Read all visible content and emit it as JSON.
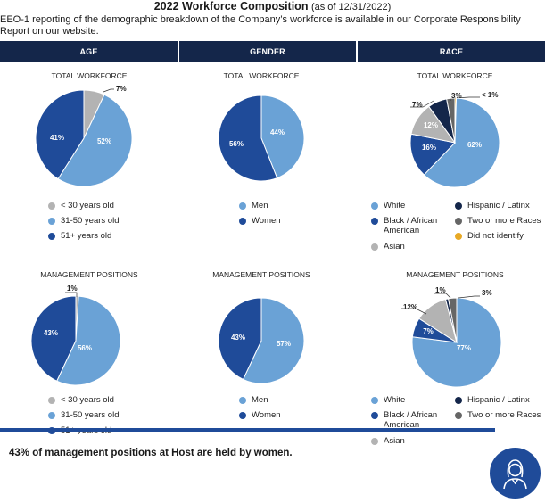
{
  "title": {
    "main": "2022 Workforce Composition",
    "sub": "(as of 12/31/2022)"
  },
  "intro": "EEO-1 reporting of the demographic breakdown of the Company’s workforce is available in our Corporate Responsibility Report on our website.",
  "headers": {
    "age": "AGE",
    "gender": "GENDER",
    "race": "RACE"
  },
  "colors": {
    "header_bg": "#14264a",
    "light_blue": "#6aa2d6",
    "mid_blue": "#1f4b99",
    "dark_navy": "#14264a",
    "gray": "#b3b3b3",
    "dark_gray": "#666666",
    "gold": "#e8a925"
  },
  "chart_data": [
    {
      "id": "age-total",
      "type": "pie",
      "title": "TOTAL WORKFORCE",
      "slices": [
        {
          "label": "< 30 years old",
          "value": 7,
          "text": "7%"
        },
        {
          "label": "31-50 years old",
          "value": 52,
          "text": "52%"
        },
        {
          "label": "51+ years old",
          "value": 41,
          "text": "41%"
        }
      ]
    },
    {
      "id": "gender-total",
      "type": "pie",
      "title": "TOTAL WORKFORCE",
      "slices": [
        {
          "label": "Men",
          "value": 44,
          "text": "44%"
        },
        {
          "label": "Women",
          "value": 56,
          "text": "56%"
        }
      ]
    },
    {
      "id": "race-total",
      "type": "pie",
      "title": "TOTAL WORKFORCE",
      "slices": [
        {
          "label": "Did not identify",
          "value": 0.5,
          "text": "< 1%"
        },
        {
          "label": "White",
          "value": 62,
          "text": "62%"
        },
        {
          "label": "Black / African American",
          "value": 16,
          "text": "16%"
        },
        {
          "label": "Asian",
          "value": 12,
          "text": "12%"
        },
        {
          "label": "Hispanic / Latinx",
          "value": 7,
          "text": "7%"
        },
        {
          "label": "Two or more Races",
          "value": 3,
          "text": "3%"
        }
      ]
    },
    {
      "id": "age-mgmt",
      "type": "pie",
      "title": "MANAGEMENT POSITIONS",
      "slices": [
        {
          "label": "< 30 years old",
          "value": 1,
          "text": "1%"
        },
        {
          "label": "31-50 years old",
          "value": 56,
          "text": "56%"
        },
        {
          "label": "51+ years old",
          "value": 43,
          "text": "43%"
        }
      ]
    },
    {
      "id": "gender-mgmt",
      "type": "pie",
      "title": "MANAGEMENT POSITIONS",
      "slices": [
        {
          "label": "Men",
          "value": 57,
          "text": "57%"
        },
        {
          "label": "Women",
          "value": 43,
          "text": "43%"
        }
      ]
    },
    {
      "id": "race-mgmt",
      "type": "pie",
      "title": "MANAGEMENT POSITIONS",
      "slices": [
        {
          "label": "White",
          "value": 77,
          "text": "77%"
        },
        {
          "label": "Black / African American",
          "value": 7,
          "text": "7%"
        },
        {
          "label": "Asian",
          "value": 12,
          "text": "12%"
        },
        {
          "label": "Hispanic / Latinx",
          "value": 1,
          "text": "1%"
        },
        {
          "label": "Two or more Races",
          "value": 3,
          "text": "3%"
        }
      ]
    }
  ],
  "legends": {
    "age": [
      "< 30 years old",
      "31-50 years old",
      "51+ years old"
    ],
    "gender": [
      "Men",
      "Women"
    ],
    "race_total": [
      "White",
      "Hispanic / Latinx",
      "Black / African American",
      "Two or more Races",
      "Asian",
      "Did not identify"
    ],
    "race_mgmt": [
      "White",
      "Hispanic / Latinx",
      "Black / African American",
      "Two or more Races",
      "Asian"
    ]
  },
  "footer": "43% of management positions at Host are held by women.",
  "badge_icon": "woman-avatar-icon"
}
